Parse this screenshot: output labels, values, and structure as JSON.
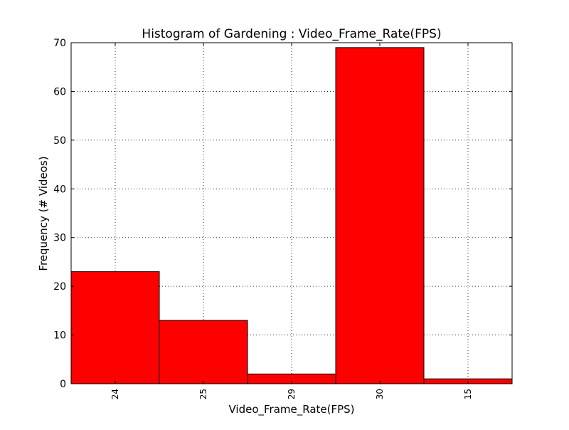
{
  "chart_data": {
    "type": "bar",
    "title": "Histogram of Gardening : Video_Frame_Rate(FPS)",
    "xlabel": "Video_Frame_Rate(FPS)",
    "ylabel": "Frequency (# Videos)",
    "categories": [
      "24",
      "25",
      "29",
      "30",
      "15"
    ],
    "values": [
      23,
      13,
      2,
      69,
      1
    ],
    "ylim": [
      0,
      70
    ],
    "yticks": [
      "0",
      "10",
      "20",
      "30",
      "40",
      "50",
      "60",
      "70"
    ],
    "grid": true,
    "bar_color": "#ff0000",
    "edge_color": "#000000"
  }
}
